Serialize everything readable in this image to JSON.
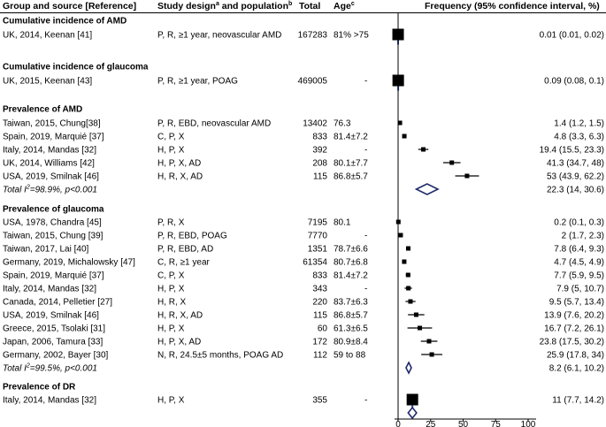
{
  "chart_data": {
    "type": "forest",
    "title": "",
    "xlabel": "",
    "ylabel": "",
    "xlim": [
      0,
      100
    ],
    "xticks": [
      0,
      25,
      50,
      75,
      100
    ],
    "grid": false,
    "header": {
      "group": "Group and source [Reference]",
      "design": "Study design",
      "design_sup_a": "a",
      "design_mid": " and population",
      "design_sup_b": "b",
      "total": "Total",
      "age": "Age",
      "age_sup_c": "c",
      "frequency": "Frequency (95% confidence interval, %)"
    },
    "groups": [
      {
        "title": "Cumulative incidence of AMD",
        "rows": [
          {
            "source": "UK, 2014, Keenan [41]",
            "design": "P, R, ≥1 year, neovascular AMD",
            "total": "167283",
            "age": "81% >75",
            "ci_text": "0.01 (0.01, 0.02)",
            "est": 0.01,
            "lo": 0.01,
            "hi": 0.02,
            "marker": "large"
          }
        ]
      },
      {
        "title": "Cumulative incidence of glaucoma",
        "rows": [
          {
            "source": "UK, 2015, Keenan [43]",
            "design": "P, R, ≥1 year, POAG",
            "total": "469005",
            "age": "-",
            "ci_text": "0.09 (0.08, 0.1)",
            "est": 0.09,
            "lo": 0.08,
            "hi": 0.1,
            "marker": "large"
          }
        ]
      },
      {
        "title": "Prevalence of AMD",
        "rows": [
          {
            "source": "Taiwan, 2015, Chung[38]",
            "design": "P, R, EBD, neovascular AMD",
            "total": "13402",
            "age": "76.3",
            "ci_text": "1.4 (1.2, 1.5)",
            "est": 1.4,
            "lo": 1.2,
            "hi": 1.5,
            "marker": "small"
          },
          {
            "source": "Spain, 2019, Marquié [37]",
            "design": "C, P, X",
            "total": "833",
            "age": "81.4±7.2",
            "ci_text": "4.8 (3.3, 6.3)",
            "est": 4.8,
            "lo": 3.3,
            "hi": 6.3,
            "marker": "small"
          },
          {
            "source": "Italy, 2014, Mandas [32]",
            "design": "H, P, X",
            "total": "392",
            "age": "-",
            "ci_text": "19.4 (15.5, 23.3)",
            "est": 19.4,
            "lo": 15.5,
            "hi": 23.3,
            "marker": "small"
          },
          {
            "source": "UK, 2014, Williams [42]",
            "design": "H, P, X, AD",
            "total": "208",
            "age": "80.1±7.7",
            "ci_text": "41.3 (34.7, 48)",
            "est": 41.3,
            "lo": 34.7,
            "hi": 48,
            "marker": "small"
          },
          {
            "source": "USA, 2019, Smilnak [46]",
            "design": "H, R, X, AD",
            "total": "115",
            "age": "86.8±5.7",
            "ci_text": "53 (43.9, 62.2)",
            "est": 53,
            "lo": 43.9,
            "hi": 62.2,
            "marker": "small"
          },
          {
            "source": "Total I²=98.9%, p<0.001",
            "design": "",
            "total": "",
            "age": "",
            "ci_text": "22.3 (14, 30.6)",
            "est": 22.3,
            "lo": 14,
            "hi": 30.6,
            "marker": "diamond",
            "is_total": true
          }
        ]
      },
      {
        "title": "Prevalence of glaucoma",
        "rows": [
          {
            "source": "USA, 1978, Chandra [45]",
            "design": "P, R, X",
            "total": "7195",
            "age": "80.1",
            "ci_text": "0.2 (0.1, 0.3)",
            "est": 0.2,
            "lo": 0.1,
            "hi": 0.3,
            "marker": "small"
          },
          {
            "source": "Taiwan, 2015, Chung [39]",
            "design": "P, R, EBD, POAG",
            "total": "7770",
            "age": "-",
            "ci_text": "2 (1.7, 2.3)",
            "est": 2,
            "lo": 1.7,
            "hi": 2.3,
            "marker": "small"
          },
          {
            "source": "Taiwan, 2017, Lai [40]",
            "design": "P, R, EBD, AD",
            "total": "1351",
            "age": "78.7±6.6",
            "ci_text": "7.8 (6.4, 9.3)",
            "est": 7.8,
            "lo": 6.4,
            "hi": 9.3,
            "marker": "small"
          },
          {
            "source": "Germany, 2019, Michalowsky [47]",
            "design": "C, R, ≥1 year",
            "total": "61354",
            "age": "80.7±6.8",
            "ci_text": "4.7 (4.5, 4.9)",
            "est": 4.7,
            "lo": 4.5,
            "hi": 4.9,
            "marker": "small"
          },
          {
            "source": "Spain, 2019, Marquié [37]",
            "design": "C, P, X",
            "total": "833",
            "age": "81.4±7.2",
            "ci_text": "7.7 (5.9, 9.5)",
            "est": 7.7,
            "lo": 5.9,
            "hi": 9.5,
            "marker": "small"
          },
          {
            "source": "Italy, 2014, Mandas [32]",
            "design": "H, P, X",
            "total": "343",
            "age": "-",
            "ci_text": "7.9 (5, 10.7)",
            "est": 7.9,
            "lo": 5,
            "hi": 10.7,
            "marker": "small"
          },
          {
            "source": "Canada, 2014, Pelletier [27]",
            "design": "H, R, X",
            "total": "220",
            "age": "83.7±6.3",
            "ci_text": "9.5 (5.7, 13.4)",
            "est": 9.5,
            "lo": 5.7,
            "hi": 13.4,
            "marker": "small"
          },
          {
            "source": "USA, 2019, Smilnak [46]",
            "design": "H, R, X, AD",
            "total": "115",
            "age": "86.8±5.7",
            "ci_text": "13.9 (7.6, 20.2)",
            "est": 13.9,
            "lo": 7.6,
            "hi": 20.2,
            "marker": "small"
          },
          {
            "source": "Greece, 2015, Tsolaki [31]",
            "design": "H, P, X",
            "total": "60",
            "age": "61.3±6.5",
            "ci_text": "16.7 (7.2, 26.1)",
            "est": 16.7,
            "lo": 7.2,
            "hi": 26.1,
            "marker": "small"
          },
          {
            "source": "Japan, 2006, Tamura [33]",
            "design": "H, P, X, AD",
            "total": "172",
            "age": "80.9±8.4",
            "ci_text": "23.8 (17.5, 30.2)",
            "est": 23.8,
            "lo": 17.5,
            "hi": 30.2,
            "marker": "small"
          },
          {
            "source": "Germany, 2002, Bayer [30]",
            "design": "N, R, 24.5±5 months, POAG AD",
            "total": "112",
            "age": "59 to 88",
            "ci_text": "25.9 (17.8, 34)",
            "est": 25.9,
            "lo": 17.8,
            "hi": 34,
            "marker": "small"
          },
          {
            "source": "Total I²=99.5%, p<0.001",
            "design": "",
            "total": "",
            "age": "",
            "ci_text": "8.2 (6.1, 10.2)",
            "est": 8.2,
            "lo": 6.1,
            "hi": 10.2,
            "marker": "diamond",
            "is_total": true
          }
        ]
      },
      {
        "title": "Prevalence of DR",
        "rows": [
          {
            "source": "Italy, 2014, Mandas [32]",
            "design": "H, P, X",
            "total": "355",
            "age": "-",
            "ci_text": "11 (7.7, 14.2)",
            "est": 11,
            "lo": 7.7,
            "hi": 14.2,
            "marker": "large"
          },
          {
            "source": "",
            "design": "",
            "total": "",
            "age": "",
            "ci_text": "",
            "est": 11,
            "lo": 7.7,
            "hi": 14.2,
            "marker": "diamond",
            "is_total": true
          }
        ]
      }
    ],
    "colors": {
      "marker": "#000000",
      "ci_line": "#000000",
      "axis": "#000000",
      "diamond": "#1f2a6b",
      "blue_tick": "#2f4ea8",
      "header_rule": "#000000"
    }
  }
}
